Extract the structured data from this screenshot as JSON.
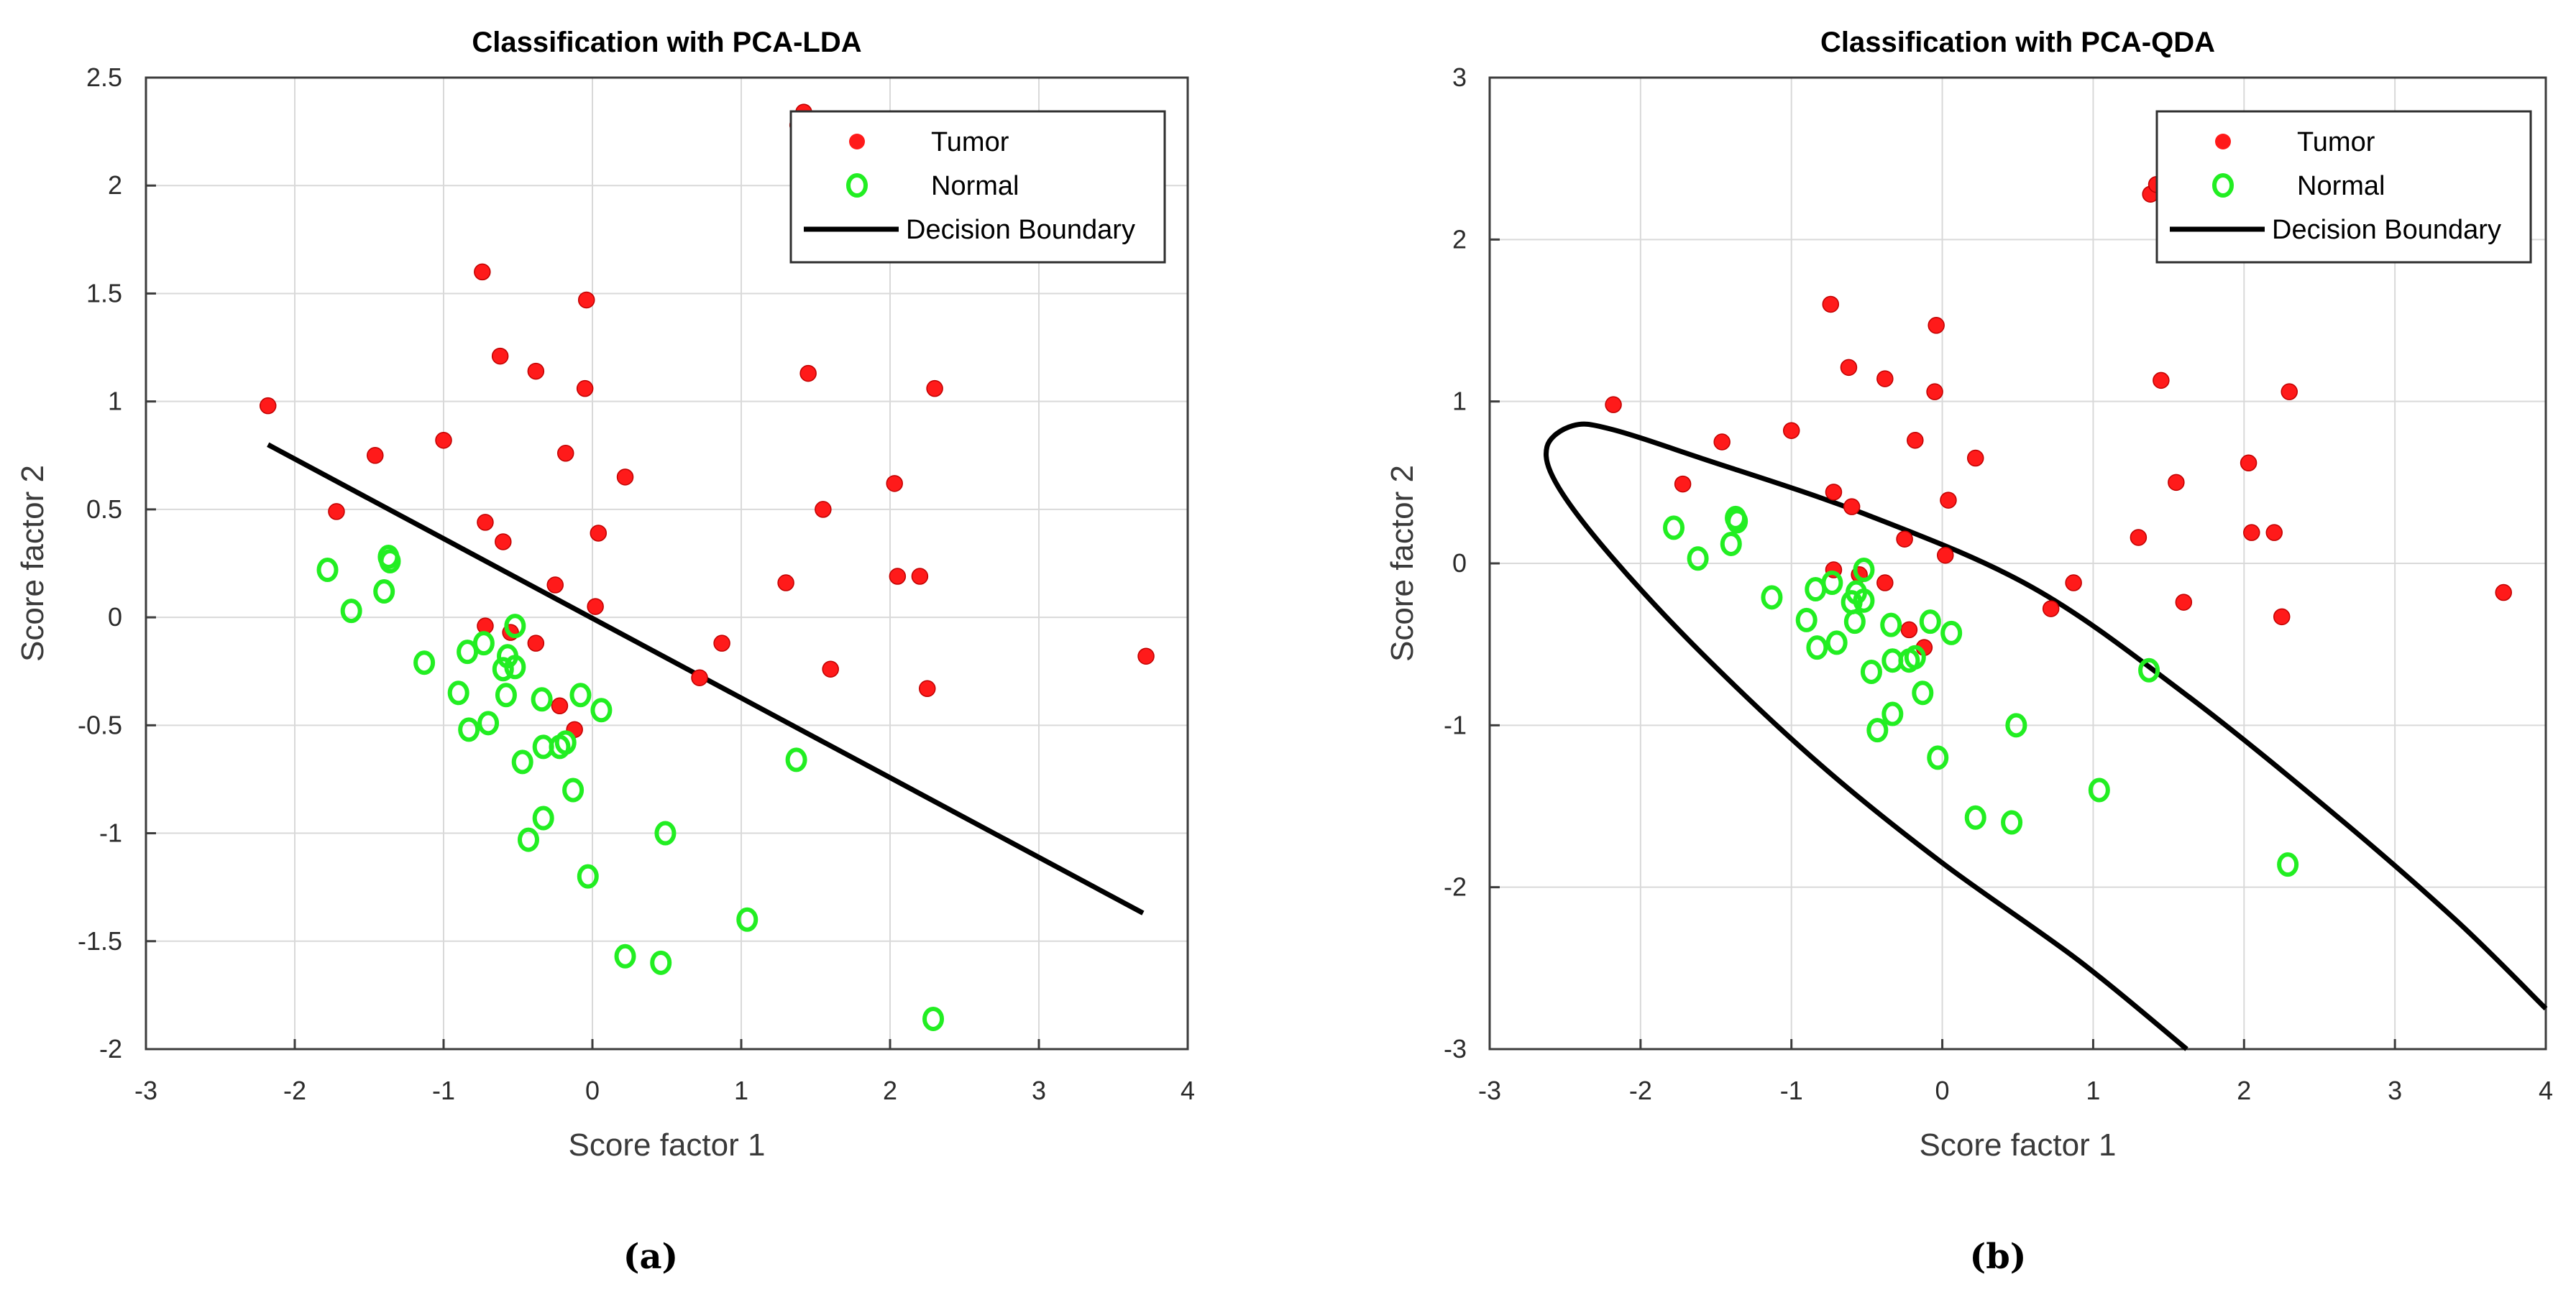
{
  "figure": {
    "captions": [
      "(a)",
      "(b)"
    ]
  },
  "colors": {
    "tumor": "#ff1a1a",
    "normal": "#22ee22",
    "boundary": "#000000"
  },
  "legend_labels": [
    "Tumor",
    "Normal",
    "Decision Boundary"
  ],
  "tumor_points": [
    [
      -2.18,
      0.98
    ],
    [
      -1.72,
      0.49
    ],
    [
      -1.46,
      0.75
    ],
    [
      -1.0,
      0.82
    ],
    [
      -0.74,
      1.6
    ],
    [
      -0.72,
      0.44
    ],
    [
      -0.62,
      1.21
    ],
    [
      -0.6,
      0.35
    ],
    [
      -0.38,
      1.14
    ],
    [
      -0.04,
      1.47
    ],
    [
      -0.05,
      1.06
    ],
    [
      -0.18,
      0.76
    ],
    [
      0.22,
      0.65
    ],
    [
      0.04,
      0.39
    ],
    [
      -0.25,
      0.15
    ],
    [
      0.02,
      0.05
    ],
    [
      -0.72,
      -0.04
    ],
    [
      -0.55,
      -0.07
    ],
    [
      -0.38,
      -0.12
    ],
    [
      -0.22,
      -0.41
    ],
    [
      -0.12,
      -0.52
    ],
    [
      0.72,
      -0.28
    ],
    [
      0.87,
      -0.12
    ],
    [
      1.3,
      0.16
    ],
    [
      1.38,
      2.28
    ],
    [
      1.42,
      2.34
    ],
    [
      1.45,
      1.13
    ],
    [
      1.55,
      0.5
    ],
    [
      1.6,
      -0.24
    ],
    [
      2.03,
      0.62
    ],
    [
      2.05,
      0.19
    ],
    [
      2.2,
      0.19
    ],
    [
      2.25,
      -0.33
    ],
    [
      2.3,
      1.06
    ],
    [
      3.72,
      -0.18
    ]
  ],
  "normal_points": [
    [
      -1.78,
      0.22
    ],
    [
      -1.62,
      0.03
    ],
    [
      -1.4,
      0.12
    ],
    [
      -1.37,
      0.28
    ],
    [
      -1.36,
      0.26
    ],
    [
      -1.13,
      -0.21
    ],
    [
      -0.9,
      -0.35
    ],
    [
      -0.84,
      -0.16
    ],
    [
      -0.83,
      -0.52
    ],
    [
      -0.73,
      -0.12
    ],
    [
      -0.7,
      -0.49
    ],
    [
      -0.6,
      -0.24
    ],
    [
      -0.58,
      -0.36
    ],
    [
      -0.57,
      -0.18
    ],
    [
      -0.52,
      -0.04
    ],
    [
      -0.52,
      -0.23
    ],
    [
      -0.47,
      -0.67
    ],
    [
      -0.43,
      -1.03
    ],
    [
      -0.34,
      -0.38
    ],
    [
      -0.33,
      -0.6
    ],
    [
      -0.33,
      -0.93
    ],
    [
      -0.22,
      -0.6
    ],
    [
      -0.18,
      -0.58
    ],
    [
      -0.13,
      -0.8
    ],
    [
      -0.08,
      -0.36
    ],
    [
      -0.03,
      -1.2
    ],
    [
      0.06,
      -0.43
    ],
    [
      0.22,
      -1.57
    ],
    [
      0.46,
      -1.6
    ],
    [
      0.49,
      -1.0
    ],
    [
      1.04,
      -1.4
    ],
    [
      1.37,
      -0.66
    ],
    [
      2.29,
      -1.86
    ]
  ],
  "chart_data": [
    {
      "type": "scatter",
      "title": "Classification with PCA-LDA",
      "xlabel": "Score factor 1",
      "ylabel": "Score factor 2",
      "xlim": [
        -3,
        4
      ],
      "ylim": [
        -2,
        2.5
      ],
      "xticks": [
        "-3",
        "-2",
        "-1",
        "0",
        "1",
        "2",
        "3",
        "4"
      ],
      "yticks": [
        "-2",
        "-1.5",
        "-1",
        "-0.5",
        "0",
        "0.5",
        "1",
        "1.5",
        "2",
        "2.5"
      ],
      "grid": true,
      "legend_position": "top-right",
      "boundary": {
        "kind": "line",
        "points": [
          [
            -2.18,
            0.8
          ],
          [
            3.7,
            -1.37
          ]
        ]
      }
    },
    {
      "type": "scatter",
      "title": "Classification with PCA-QDA",
      "xlabel": "Score factor 1",
      "ylabel": "Score factor 2",
      "xlim": [
        -3,
        4
      ],
      "ylim": [
        -3,
        3
      ],
      "xticks": [
        "-3",
        "-2",
        "-1",
        "0",
        "1",
        "2",
        "3",
        "4"
      ],
      "yticks": [
        "-3",
        "-2",
        "-1",
        "0",
        "1",
        "2",
        "3"
      ],
      "grid": true,
      "legend_position": "top-right",
      "boundary": {
        "kind": "curve",
        "points": [
          [
            1.62,
            -3.0
          ],
          [
            0.9,
            -2.45
          ],
          [
            0.0,
            -1.85
          ],
          [
            -0.8,
            -1.25
          ],
          [
            -1.6,
            -0.55
          ],
          [
            -2.2,
            0.05
          ],
          [
            -2.55,
            0.48
          ],
          [
            -2.62,
            0.72
          ],
          [
            -2.45,
            0.85
          ],
          [
            -2.2,
            0.83
          ],
          [
            -1.6,
            0.65
          ],
          [
            -0.5,
            0.3
          ],
          [
            0.6,
            -0.15
          ],
          [
            1.6,
            -0.8
          ],
          [
            2.6,
            -1.55
          ],
          [
            3.4,
            -2.2
          ],
          [
            4.0,
            -2.75
          ]
        ]
      }
    }
  ]
}
